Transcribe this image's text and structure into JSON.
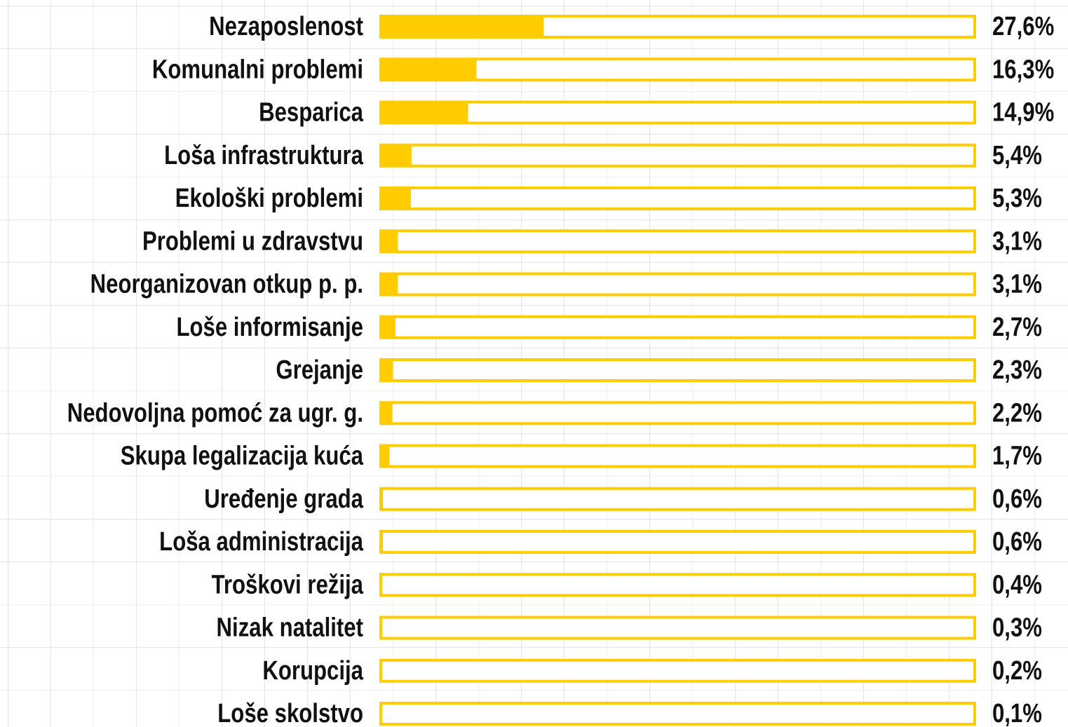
{
  "chart_data": {
    "type": "bar",
    "orientation": "horizontal",
    "categories": [
      "Nezaposlenost",
      "Komunalni problemi",
      "Besparica",
      "Loša infrastruktura",
      "Ekološki problemi",
      "Problemi u zdravstvu",
      "Neorganizovan otkup p. p.",
      "Loše informisanje",
      "Grejanje",
      "Nedovoljna pomoć za ugr. g.",
      "Skupa legalizacija kuća",
      "Uređenje grada",
      "Loša administracija",
      "Troškovi režija",
      "Nizak natalitet",
      "Korupcija",
      "Loše skolstvo"
    ],
    "values": [
      27.6,
      16.3,
      14.9,
      5.4,
      5.3,
      3.1,
      3.1,
      2.7,
      2.3,
      2.2,
      1.7,
      0.6,
      0.6,
      0.4,
      0.3,
      0.2,
      0.1
    ],
    "value_labels": [
      "27,6%",
      "16,3%",
      "14,9%",
      "5,4%",
      "5,3%",
      "3,1%",
      "3,1%",
      "2,7%",
      "2,3%",
      "2,2%",
      "1,7%",
      "0,6%",
      "0,6%",
      "0,4%",
      "0,3%",
      "0,2%",
      "0,1%"
    ],
    "xlim": [
      0,
      100
    ],
    "color": "#ffcc00"
  }
}
